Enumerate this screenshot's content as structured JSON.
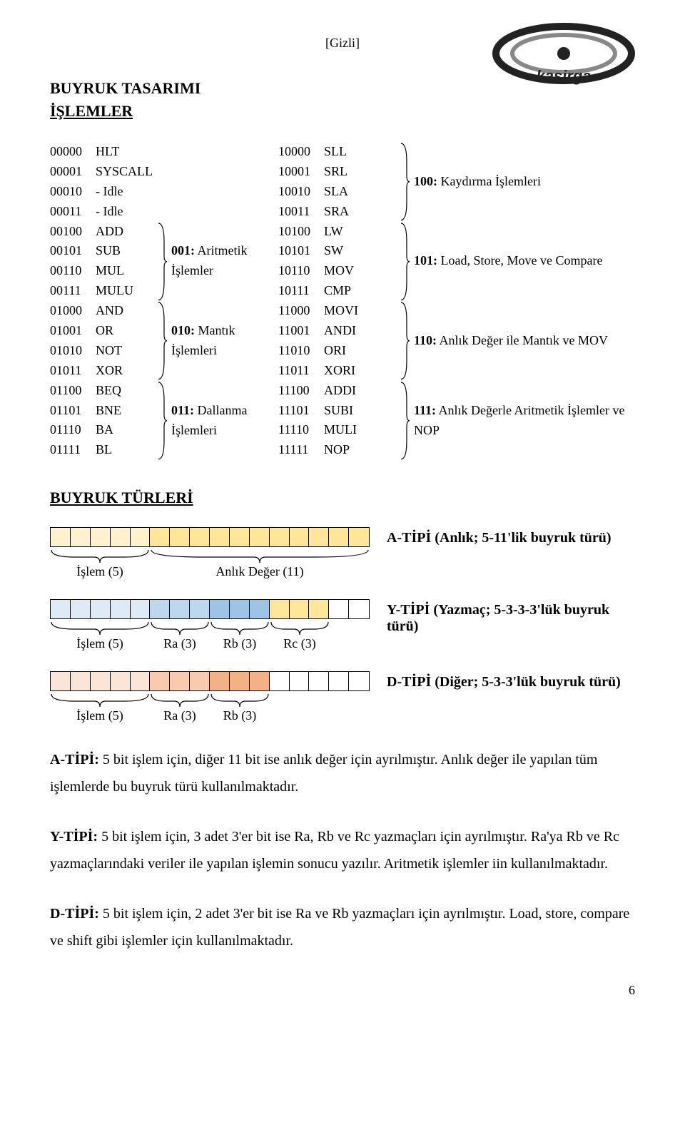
{
  "header": {
    "tag": "[Gizli]",
    "logo_text": "kasırga"
  },
  "titles": {
    "t1": "BUYRUK TASARIMI",
    "t2": "İŞLEMLER"
  },
  "opcodes": {
    "col1": [
      {
        "code": "00000",
        "mn": "HLT"
      },
      {
        "code": "00001",
        "mn": "SYSCALL"
      },
      {
        "code": "00010",
        "mn": "- Idle"
      },
      {
        "code": "00011",
        "mn": "- Idle"
      },
      {
        "code": "00100",
        "mn": "ADD"
      },
      {
        "code": "00101",
        "mn": "SUB"
      },
      {
        "code": "00110",
        "mn": "MUL"
      },
      {
        "code": "00111",
        "mn": "MULU"
      },
      {
        "code": "01000",
        "mn": "AND"
      },
      {
        "code": "01001",
        "mn": "OR"
      },
      {
        "code": "01010",
        "mn": "NOT"
      },
      {
        "code": "01011",
        "mn": "XOR"
      },
      {
        "code": "01100",
        "mn": "BEQ"
      },
      {
        "code": "01101",
        "mn": "BNE"
      },
      {
        "code": "01110",
        "mn": "BA"
      },
      {
        "code": "01111",
        "mn": "BL"
      }
    ],
    "group_labels": {
      "g001": "001: Aritmetik İşlemler",
      "g010": "010: Mantık İşlemleri",
      "g011": "011: Dallanma İşlemleri"
    },
    "col3": [
      {
        "code": "10000",
        "mn": "SLL"
      },
      {
        "code": "10001",
        "mn": "SRL"
      },
      {
        "code": "10010",
        "mn": "SLA"
      },
      {
        "code": "10011",
        "mn": "SRA"
      },
      {
        "code": "10100",
        "mn": "LW"
      },
      {
        "code": "10101",
        "mn": "SW"
      },
      {
        "code": "10110",
        "mn": "MOV"
      },
      {
        "code": "10111",
        "mn": "CMP"
      },
      {
        "code": "11000",
        "mn": "MOVI"
      },
      {
        "code": "11001",
        "mn": "ANDI"
      },
      {
        "code": "11010",
        "mn": "ORI"
      },
      {
        "code": "11011",
        "mn": "XORI"
      },
      {
        "code": "11100",
        "mn": "ADDI"
      },
      {
        "code": "11101",
        "mn": "SUBI"
      },
      {
        "code": "11110",
        "mn": "MULI"
      },
      {
        "code": "11111",
        "mn": "NOP"
      }
    ],
    "group_labels2": {
      "g100": "100: Kaydırma İşlemleri",
      "g101": "101: Load, Store, Move ve Compare",
      "g110": "110: Anlık Değer ile Mantık ve MOV",
      "g111": "111: Anlık Değerle Aritmetik İşlemler ve NOP"
    }
  },
  "types_heading": "BUYRUK TÜRLERİ",
  "typeA": {
    "title": "A-TİPİ (Anlık; 5-11'lik buyruk türü)",
    "colors": [
      "#fff2cc",
      "#fff2cc",
      "#fff2cc",
      "#fff2cc",
      "#fff2cc",
      "#ffe699",
      "#ffe699",
      "#ffe699",
      "#ffe699",
      "#ffe699",
      "#ffe699",
      "#ffe699",
      "#ffe699",
      "#ffe699",
      "#ffe699",
      "#ffe699"
    ],
    "under": [
      "İşlem (5)",
      "Anlık Değer (11)"
    ]
  },
  "typeY": {
    "title": "Y-TİPİ (Yazmaç; 5-3-3-3'lük buyruk türü)",
    "colors": [
      "#deebf7",
      "#deebf7",
      "#deebf7",
      "#deebf7",
      "#deebf7",
      "#bdd7ee",
      "#bdd7ee",
      "#bdd7ee",
      "#9dc3e6",
      "#9dc3e6",
      "#9dc3e6",
      "#ffe699",
      "#ffe699",
      "#ffe699",
      "#ffffff",
      "#ffffff"
    ],
    "under": [
      "İşlem (5)",
      "Ra (3)",
      "Rb (3)",
      "Rc (3)"
    ]
  },
  "typeD": {
    "title": "D-TİPİ (Diğer; 5-3-3'lük buyruk türü)",
    "colors": [
      "#fbe5d6",
      "#fbe5d6",
      "#fbe5d6",
      "#fbe5d6",
      "#fbe5d6",
      "#f8cbad",
      "#f8cbad",
      "#f8cbad",
      "#f4b183",
      "#f4b183",
      "#f4b183",
      "#ffffff",
      "#ffffff",
      "#ffffff",
      "#ffffff",
      "#ffffff"
    ],
    "under": [
      "İşlem (5)",
      "Ra (3)",
      "Rb (3)"
    ]
  },
  "paragraphs": {
    "p1": "A-TİPİ: 5 bit işlem için, diğer 11 bit ise anlık değer için ayrılmıştır. Anlık değer ile yapılan tüm işlemlerde bu buyruk türü kullanılmaktadır.",
    "p2": "Y-TİPİ: 5 bit işlem için, 3 adet 3'er bit ise Ra, Rb ve Rc yazmaçları için ayrılmıştır. Ra'ya Rb ve Rc yazmaçlarındaki veriler ile yapılan işlemin sonucu yazılır. Aritmetik işlemler iin kullanılmaktadır.",
    "p3": "D-TİPİ: 5 bit işlem için, 2 adet 3'er bit ise Ra ve Rb yazmaçları için ayrılmıştır. Load, store, compare ve shift gibi işlemler için kullanılmaktadır."
  },
  "pagenum": "6"
}
